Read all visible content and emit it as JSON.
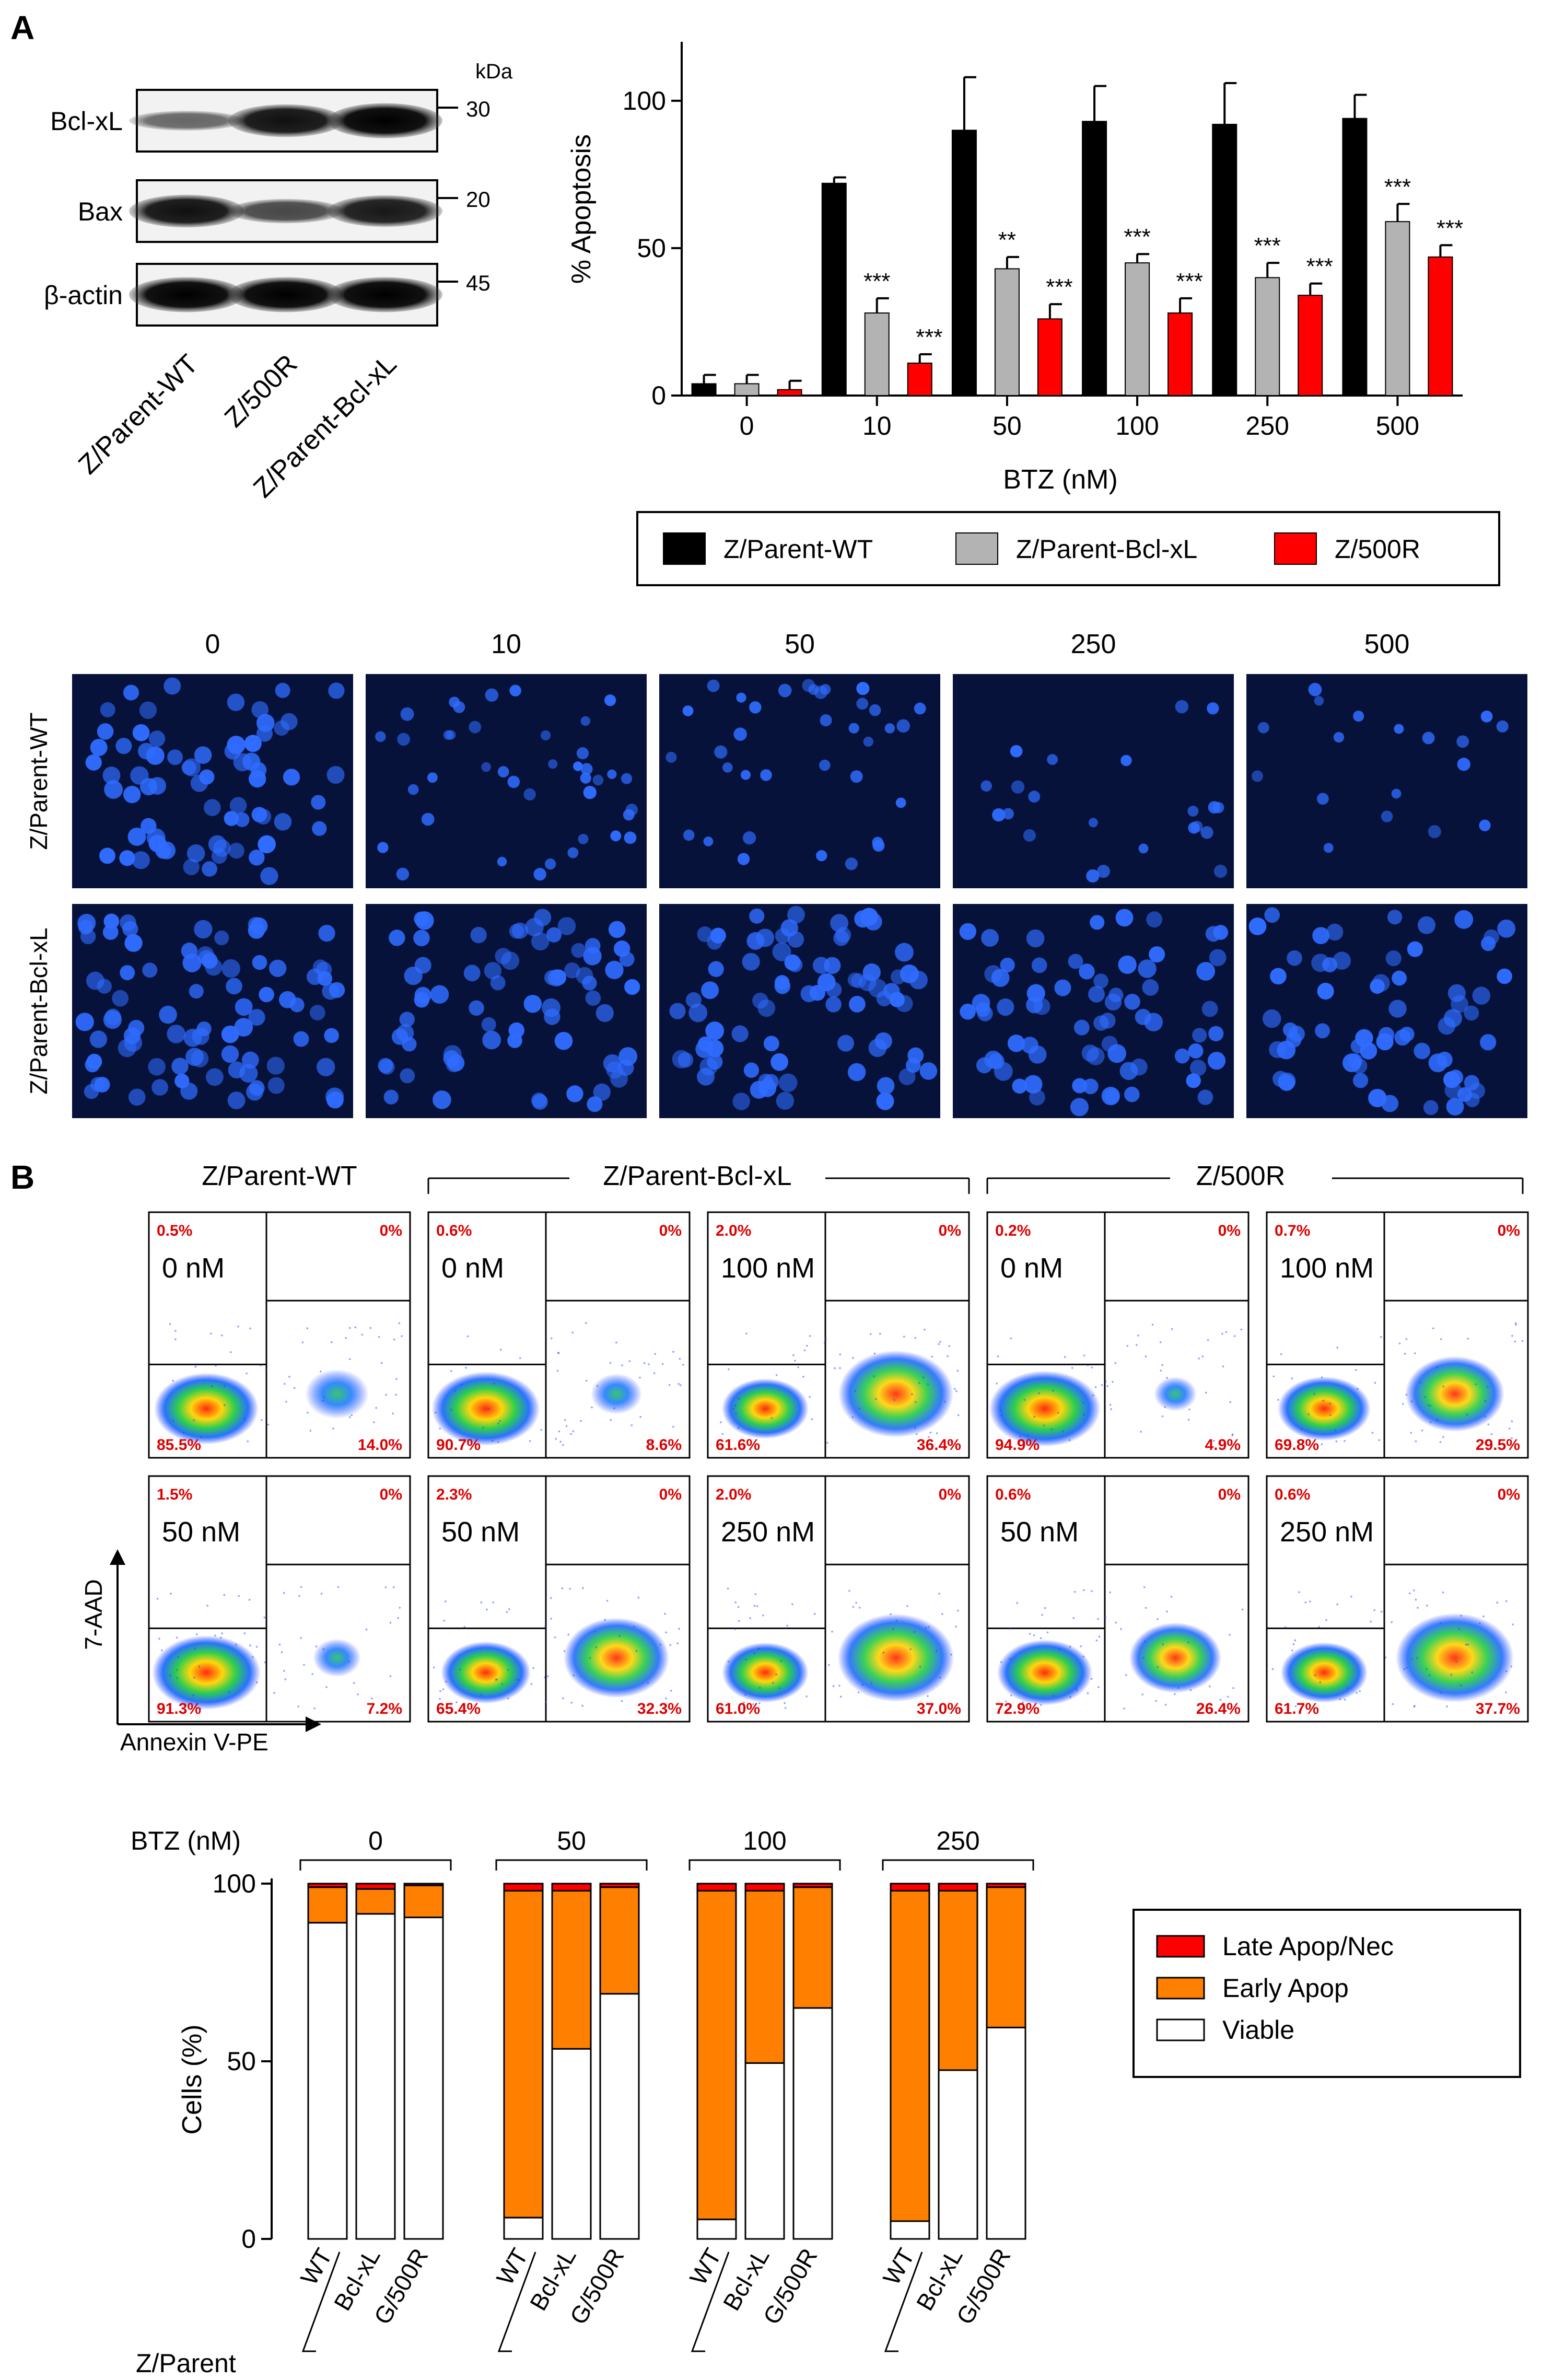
{
  "panel_labels": {
    "a": "A",
    "b": "B"
  },
  "western": {
    "kda_label": "kDa",
    "bands": [
      {
        "name": "Bcl-xL",
        "kda": "30"
      },
      {
        "name": "Bax",
        "kda": "20"
      },
      {
        "name": "β-actin",
        "kda": "45"
      }
    ],
    "lanes": [
      "Z/Parent-WT",
      "Z/500R",
      "Z/Parent-Bcl-xL"
    ]
  },
  "colors": {
    "wt": "#000000",
    "bclxl": "#b3b3b3",
    "r500": "#ff0000",
    "late": "#ff0000",
    "early": "#ff8000",
    "viable": "#ffffff",
    "microscopy_bg": "#07123a",
    "nuclei": "#2f6cff",
    "flow_label": "#dd0000"
  },
  "microscopy": {
    "doses": [
      "0",
      "10",
      "50",
      "250",
      "500"
    ],
    "rows": [
      "Z/Parent-WT",
      "Z/Parent-Bcl-xL"
    ]
  },
  "flow": {
    "group_headers": [
      "Z/Parent-WT",
      "Z/Parent-Bcl-xL",
      "Z/500R"
    ],
    "y_axis": "7-AAD",
    "x_axis": "Annexin V-PE",
    "rows": [
      [
        {
          "dose": "0 nM",
          "ul": "0.5%",
          "ur": "0%",
          "ll": "85.5%",
          "lr": "14.0%"
        },
        {
          "dose": "0 nM",
          "ul": "0.6%",
          "ur": "0%",
          "ll": "90.7%",
          "lr": "8.6%"
        },
        {
          "dose": "100 nM",
          "ul": "2.0%",
          "ur": "0%",
          "ll": "61.6%",
          "lr": "36.4%"
        },
        {
          "dose": "0 nM",
          "ul": "0.2%",
          "ur": "0%",
          "ll": "94.9%",
          "lr": "4.9%"
        },
        {
          "dose": "100 nM",
          "ul": "0.7%",
          "ur": "0%",
          "ll": "69.8%",
          "lr": "29.5%"
        }
      ],
      [
        {
          "dose": "50 nM",
          "ul": "1.5%",
          "ur": "0%",
          "ll": "91.3%",
          "lr": "7.2%"
        },
        {
          "dose": "50 nM",
          "ul": "2.3%",
          "ur": "0%",
          "ll": "65.4%",
          "lr": "32.3%"
        },
        {
          "dose": "250 nM",
          "ul": "2.0%",
          "ur": "0%",
          "ll": "61.0%",
          "lr": "37.0%"
        },
        {
          "dose": "50 nM",
          "ul": "0.6%",
          "ur": "0%",
          "ll": "72.9%",
          "lr": "26.4%"
        },
        {
          "dose": "250 nM",
          "ul": "0.6%",
          "ur": "0%",
          "ll": "61.7%",
          "lr": "37.7%"
        }
      ]
    ]
  },
  "chart_data": [
    {
      "type": "bar",
      "title": "",
      "xlabel": "BTZ (nM)",
      "ylabel": "% Apoptosis",
      "ylim": [
        0,
        120
      ],
      "yticks": [
        0,
        50,
        100
      ],
      "categories": [
        "0",
        "10",
        "50",
        "100",
        "250",
        "500"
      ],
      "series": [
        {
          "name": "Z/Parent-WT",
          "values": [
            4,
            72,
            90,
            93,
            92,
            94
          ],
          "errors": [
            3,
            2,
            18,
            12,
            14,
            8
          ],
          "sig": [
            "",
            "",
            "",
            "",
            "",
            ""
          ]
        },
        {
          "name": "Z/Parent-Bcl-xL",
          "values": [
            4,
            28,
            43,
            45,
            40,
            59
          ],
          "errors": [
            3,
            5,
            4,
            3,
            5,
            6
          ],
          "sig": [
            "",
            "***",
            "**",
            "***",
            "***",
            "***"
          ]
        },
        {
          "name": "Z/500R",
          "values": [
            2,
            11,
            26,
            28,
            34,
            47
          ],
          "errors": [
            3,
            3,
            5,
            5,
            4,
            4
          ],
          "sig": [
            "",
            "***",
            "***",
            "***",
            "***",
            "***"
          ]
        }
      ],
      "legend": [
        "Z/Parent-WT",
        "Z/Parent-Bcl-xL",
        "Z/500R"
      ],
      "legend_placement": "bottom"
    },
    {
      "type": "bar",
      "title": "",
      "xlabel": "Z/Parent",
      "ylabel": "Cells (%)",
      "ylim": [
        0,
        100
      ],
      "yticks": [
        0,
        50,
        100
      ],
      "dose_label": "BTZ (nM)",
      "dose_groups": [
        "0",
        "50",
        "100",
        "250"
      ],
      "categories": [
        "WT",
        "Bcl-xL",
        "G/500R"
      ],
      "stacked": true,
      "groups": [
        {
          "dose": "0",
          "bars": [
            {
              "label": "WT",
              "viable": 89,
              "early": 10,
              "late": 1
            },
            {
              "label": "Bcl-xL",
              "viable": 91.5,
              "early": 7,
              "late": 1.5
            },
            {
              "label": "G/500R",
              "viable": 90.5,
              "early": 9,
              "late": 0.5
            }
          ]
        },
        {
          "dose": "50",
          "bars": [
            {
              "label": "WT",
              "viable": 6,
              "early": 92,
              "late": 2
            },
            {
              "label": "Bcl-xL",
              "viable": 53.5,
              "early": 44.5,
              "late": 2
            },
            {
              "label": "G/500R",
              "viable": 69,
              "early": 30,
              "late": 1
            }
          ]
        },
        {
          "dose": "100",
          "bars": [
            {
              "label": "WT",
              "viable": 5.5,
              "early": 92.5,
              "late": 2
            },
            {
              "label": "Bcl-xL",
              "viable": 49.5,
              "early": 48.5,
              "late": 2
            },
            {
              "label": "G/500R",
              "viable": 65,
              "early": 34,
              "late": 1
            }
          ]
        },
        {
          "dose": "250",
          "bars": [
            {
              "label": "WT",
              "viable": 5,
              "early": 93,
              "late": 2
            },
            {
              "label": "Bcl-xL",
              "viable": 47.5,
              "early": 50.5,
              "late": 2
            },
            {
              "label": "G/500R",
              "viable": 59.5,
              "early": 39.5,
              "late": 1
            }
          ]
        }
      ],
      "legend": [
        "Late Apop/Nec",
        "Early Apop",
        "Viable"
      ],
      "legend_placement": "right"
    }
  ]
}
